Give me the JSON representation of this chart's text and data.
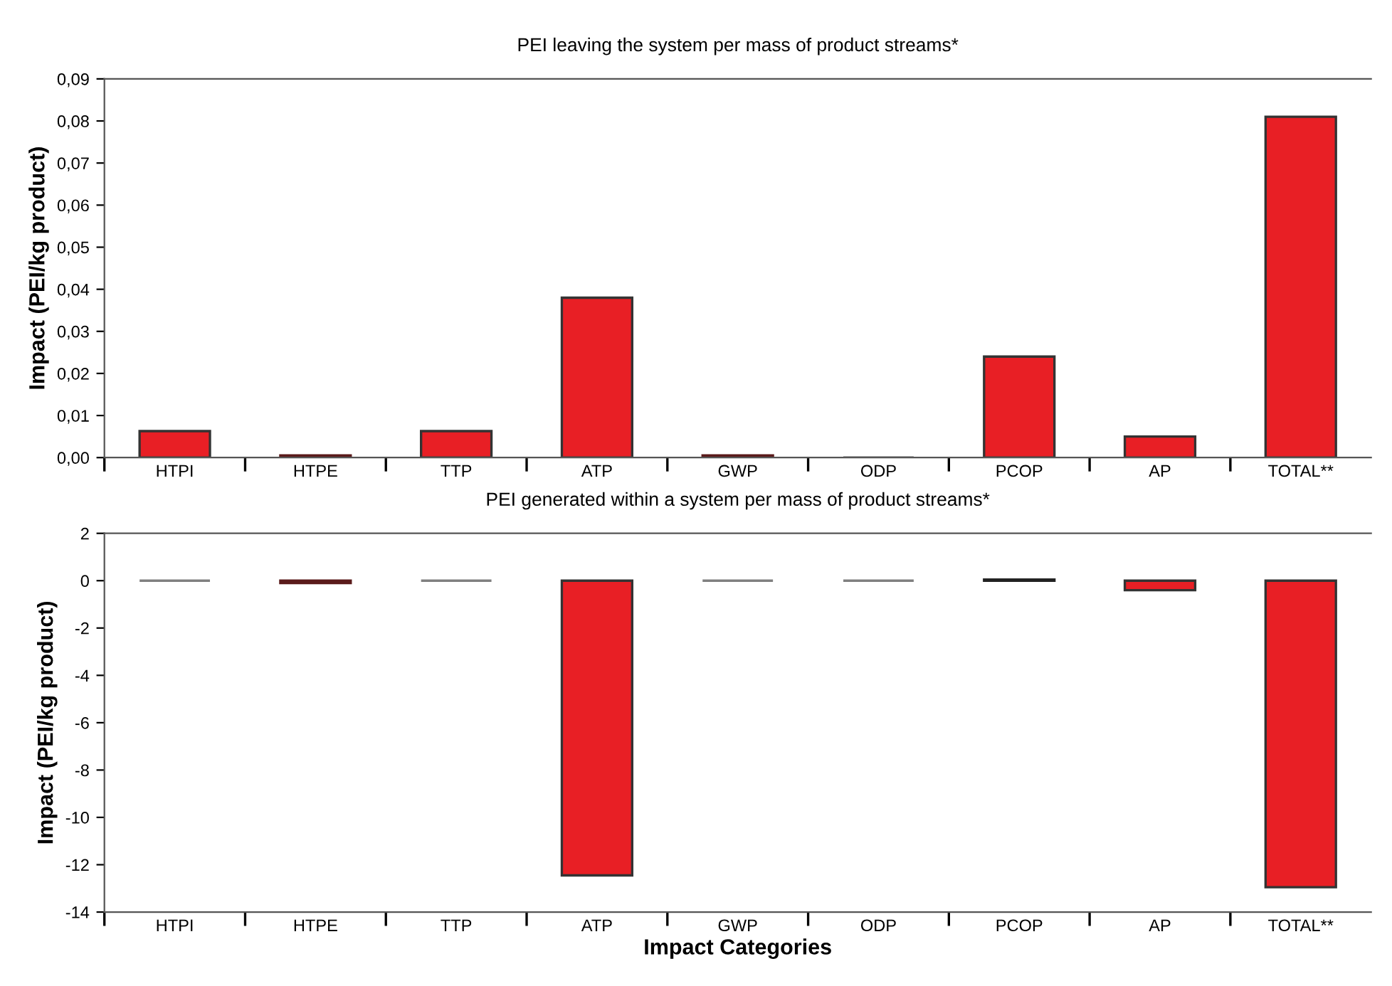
{
  "chart_data": [
    {
      "type": "bar",
      "title": "PEI leaving the system per mass of product streams*",
      "ylabel": "Impact (PEI/kg product)",
      "categories": [
        "HTPI",
        "HTPE",
        "TTP",
        "ATP",
        "GWP",
        "ODP",
        "PCOP",
        "AP",
        "TOTAL**"
      ],
      "values": [
        0.0063,
        0.0005,
        0.0063,
        0.038,
        0.0005,
        0,
        0.024,
        0.005,
        0.081
      ],
      "colors": [
        "#e81f25",
        "#5a1a1a",
        "#e81f25",
        "#e81f25",
        "#5a1a1a",
        "#555555",
        "#e81f25",
        "#e81f25",
        "#e81f25"
      ],
      "ylim": [
        0,
        0.09
      ],
      "yticks": [
        {
          "value": 0,
          "label": "0,00"
        },
        {
          "value": 0.01,
          "label": "0,01"
        },
        {
          "value": 0.02,
          "label": "0,02"
        },
        {
          "value": 0.03,
          "label": "0,03"
        },
        {
          "value": 0.04,
          "label": "0,04"
        },
        {
          "value": 0.05,
          "label": "0,05"
        },
        {
          "value": 0.06,
          "label": "0,06"
        },
        {
          "value": 0.07,
          "label": "0,07"
        },
        {
          "value": 0.08,
          "label": "0,08"
        },
        {
          "value": 0.09,
          "label": "0,09"
        }
      ],
      "grid": false,
      "legend": false
    },
    {
      "type": "bar",
      "title": "PEI generated within a system per mass of product streams*",
      "ylabel": "Impact (PEI/kg product)",
      "xlabel": "Impact Categories",
      "categories": [
        "HTPI",
        "HTPE",
        "TTP",
        "ATP",
        "GWP",
        "ODP",
        "PCOP",
        "AP",
        "TOTAL**"
      ],
      "values": [
        0,
        -0.1,
        0,
        -12.45,
        0,
        0,
        0.05,
        -0.4,
        -12.95
      ],
      "colors": [
        "#808080",
        "#5a1a1a",
        "#808080",
        "#e81f25",
        "#808080",
        "#808080",
        "#222222",
        "#e81f25",
        "#e81f25"
      ],
      "ylim": [
        -14,
        2
      ],
      "yticks": [
        {
          "value": -14,
          "label": "-14"
        },
        {
          "value": -12,
          "label": "-12"
        },
        {
          "value": -10,
          "label": "-10"
        },
        {
          "value": -8,
          "label": "-8"
        },
        {
          "value": -6,
          "label": "-6"
        },
        {
          "value": -4,
          "label": "-4"
        },
        {
          "value": -2,
          "label": "-2"
        },
        0,
        2
      ],
      "grid": false,
      "legend": false
    }
  ]
}
